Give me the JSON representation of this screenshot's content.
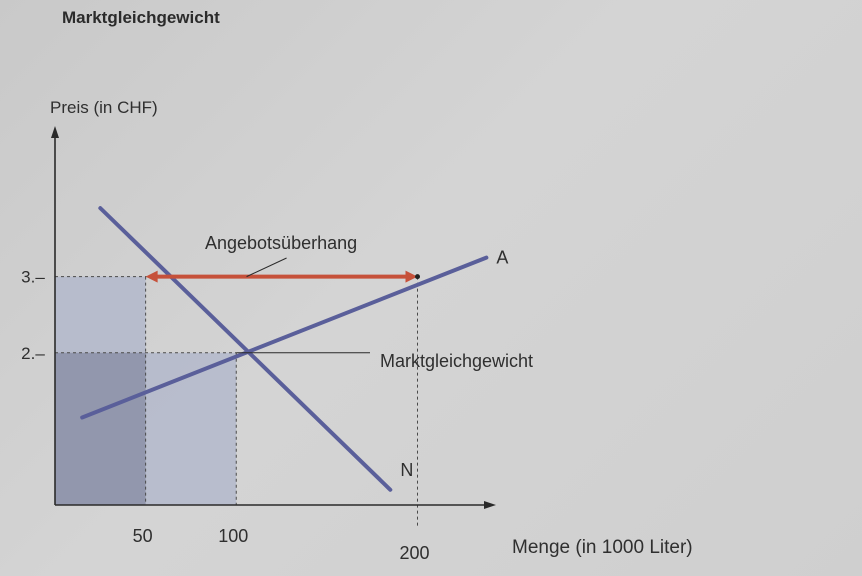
{
  "page": {
    "title": "Marktgleichgewicht"
  },
  "chart_data": {
    "type": "line",
    "title": "Marktgleichgewicht",
    "ylabel": "Preis (in CHF)",
    "xlabel": "Menge (in 1000 Liter)",
    "x_ticks": [
      {
        "value": 50,
        "label": "50"
      },
      {
        "value": 100,
        "label": "100"
      },
      {
        "value": 200,
        "label": "200"
      }
    ],
    "y_ticks": [
      {
        "value": 2,
        "label": "2.–"
      },
      {
        "value": 3,
        "label": "3.–"
      }
    ],
    "xlim": [
      0,
      240
    ],
    "ylim": [
      0,
      4.9
    ],
    "series": [
      {
        "name": "A",
        "color": "#5a5f9a",
        "points": [
          [
            15,
            1.15
          ],
          [
            238,
            3.25
          ]
        ]
      },
      {
        "name": "N",
        "color": "#5a5f9a",
        "points": [
          [
            25,
            3.9
          ],
          [
            185,
            0.2
          ]
        ]
      }
    ],
    "annotations": {
      "surplus_label": "Angebotsüberhang",
      "surplus_color": "#c6513a",
      "surplus_from": [
        50,
        3
      ],
      "surplus_to": [
        200,
        3
      ],
      "equilibrium_label": "Marktgleichgewicht",
      "equilibrium_point": [
        100,
        2
      ]
    },
    "shading": {
      "dark_color": "#8e93aa",
      "light_color": "#b3b8cb"
    },
    "grid": false
  }
}
